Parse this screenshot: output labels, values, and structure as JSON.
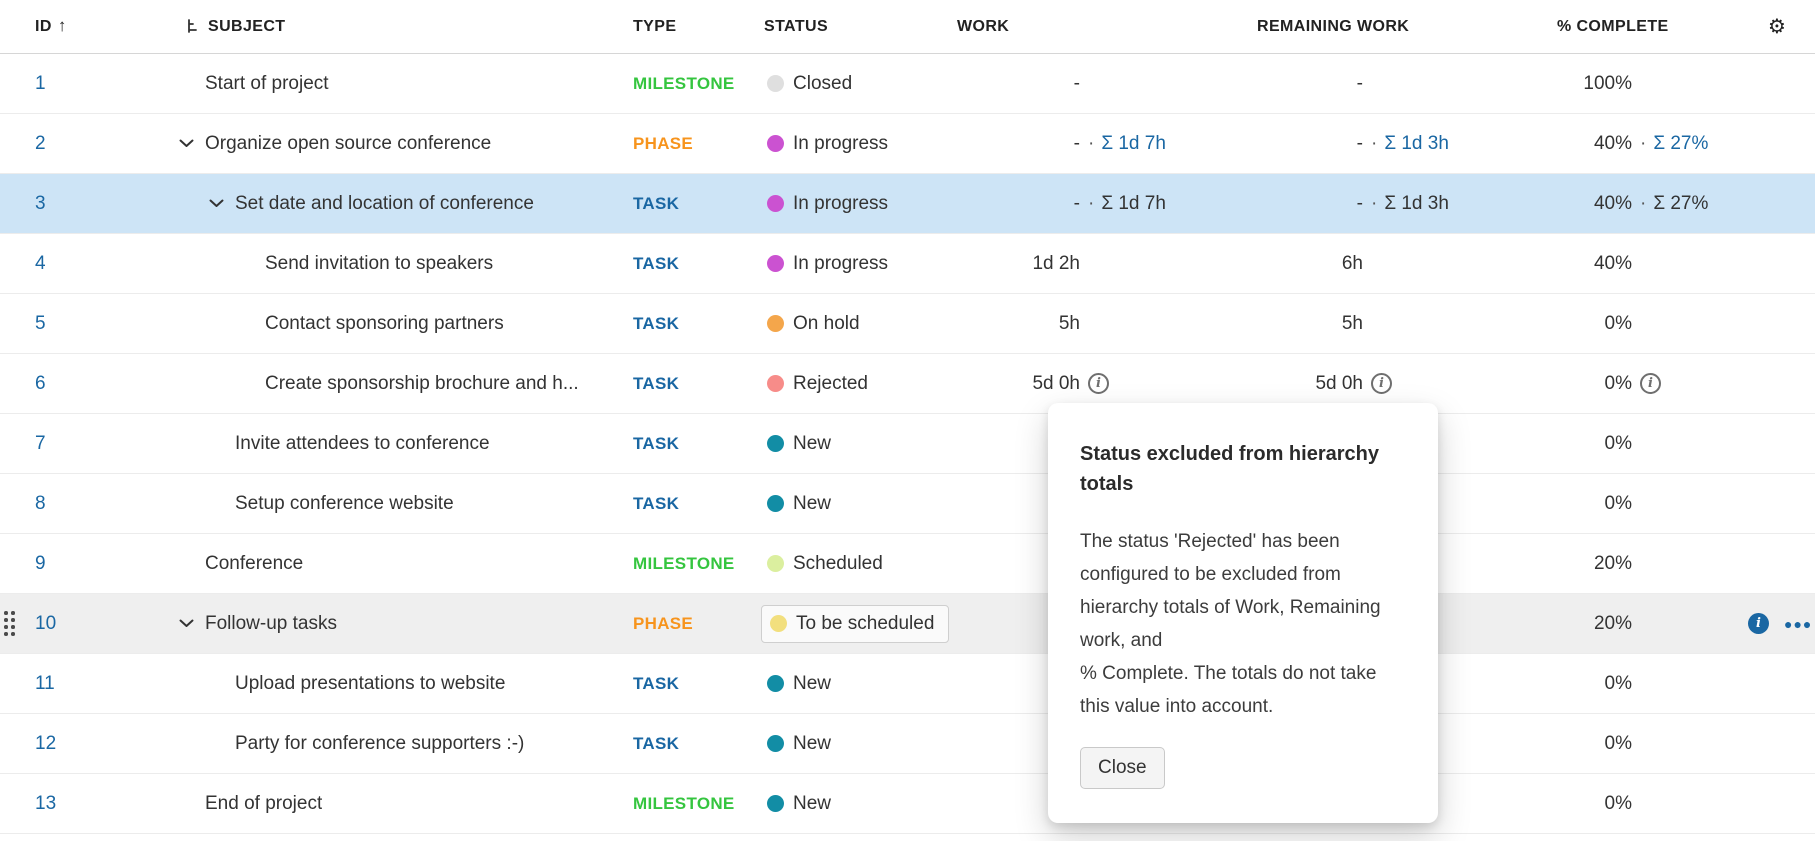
{
  "separator": "·",
  "colors": {
    "accent_blue": "#1a67a3",
    "selected_row_bg": "#cde4f6",
    "hover_row_bg": "#efefef",
    "type": {
      "TASK": "#1a67a3",
      "MILESTONE": "#35c53f",
      "PHASE": "#f7941d"
    },
    "status": {
      "Closed": "#dfdfdf",
      "In progress": "#cb52d1",
      "On hold": "#f4a64b",
      "Rejected": "#f78c89",
      "New": "#128da5",
      "Scheduled": "#dbef9f",
      "To be scheduled": "#f2df7e"
    }
  },
  "header": {
    "columns": [
      {
        "key": "id",
        "label": "ID",
        "sort_icon": "↑"
      },
      {
        "key": "subject",
        "label": "SUBJECT",
        "has_hierarchy_icon": true
      },
      {
        "key": "type",
        "label": "TYPE"
      },
      {
        "key": "status",
        "label": "STATUS"
      },
      {
        "key": "work",
        "label": "WORK"
      },
      {
        "key": "remaining",
        "label": "REMAINING WORK"
      },
      {
        "key": "pct",
        "label": "% COMPLETE"
      },
      {
        "key": "actions",
        "label": "",
        "gear_icon": "⚙"
      }
    ]
  },
  "rows": [
    {
      "id": "1",
      "level": 0,
      "chevron": false,
      "subject": "Start of project",
      "type": "MILESTONE",
      "status": "Closed",
      "work": "-",
      "rem": "-",
      "pct": "100%"
    },
    {
      "id": "2",
      "level": 0,
      "chevron": true,
      "subject": "Organize open source conference",
      "type": "PHASE",
      "status": "In progress",
      "work": "-",
      "work_sum": "Σ 1d 7h",
      "rem": "-",
      "rem_sum": "Σ 1d 3h",
      "pct": "40%",
      "pct_sum": "Σ 27%"
    },
    {
      "id": "3",
      "level": 1,
      "chevron": true,
      "subject": "Set date and location of conference",
      "type": "TASK",
      "status": "In progress",
      "work": "-",
      "work_sum": "Σ 1d 7h",
      "rem": "-",
      "rem_sum": "Σ 1d 3h",
      "pct": "40%",
      "pct_sum": "Σ 27%",
      "selected": true
    },
    {
      "id": "4",
      "level": 2,
      "chevron": false,
      "subject": "Send invitation to speakers",
      "type": "TASK",
      "status": "In progress",
      "work": "1d 2h",
      "rem": "6h",
      "pct": "40%"
    },
    {
      "id": "5",
      "level": 2,
      "chevron": false,
      "subject": "Contact sponsoring partners",
      "type": "TASK",
      "status": "On hold",
      "work": "5h",
      "rem": "5h",
      "pct": "0%"
    },
    {
      "id": "6",
      "level": 2,
      "chevron": false,
      "subject": "Create sponsorship brochure and h...",
      "type": "TASK",
      "status": "Rejected",
      "work": "5d 0h",
      "work_info": true,
      "rem": "5d 0h",
      "rem_info": true,
      "pct": "0%",
      "pct_info": true
    },
    {
      "id": "7",
      "level": 1,
      "chevron": false,
      "subject": "Invite attendees to conference",
      "type": "TASK",
      "status": "New",
      "work": "",
      "rem": "",
      "pct": "0%"
    },
    {
      "id": "8",
      "level": 1,
      "chevron": false,
      "subject": "Setup conference website",
      "type": "TASK",
      "status": "New",
      "work": "",
      "rem": "",
      "pct": "0%"
    },
    {
      "id": "9",
      "level": 0,
      "chevron": false,
      "subject": "Conference",
      "type": "MILESTONE",
      "status": "Scheduled",
      "work": "",
      "rem": "",
      "pct": "20%"
    },
    {
      "id": "10",
      "level": 0,
      "chevron": true,
      "subject": "Follow-up tasks",
      "type": "PHASE",
      "status": "To be scheduled",
      "status_boxed": true,
      "work": "",
      "rem": "",
      "pct": "20%",
      "hovered": true,
      "drag_handle": true,
      "row_actions": true
    },
    {
      "id": "11",
      "level": 1,
      "chevron": false,
      "subject": "Upload presentations to website",
      "type": "TASK",
      "status": "New",
      "work": "",
      "rem": "",
      "pct": "0%"
    },
    {
      "id": "12",
      "level": 1,
      "chevron": false,
      "subject": "Party for conference supporters :-)",
      "type": "TASK",
      "status": "New",
      "work": "",
      "rem": "",
      "pct": "0%"
    },
    {
      "id": "13",
      "level": 0,
      "chevron": false,
      "subject": "End of project",
      "type": "MILESTONE",
      "status": "New",
      "work": "",
      "rem": "",
      "pct": "0%"
    }
  ],
  "popover": {
    "title": "Status excluded from hierarchy totals",
    "body": "The status 'Rejected' has been configured to be excluded from hierarchy totals of Work, Remaining work, and\n% Complete. The totals do not take this value into account.",
    "close_label": "Close"
  }
}
